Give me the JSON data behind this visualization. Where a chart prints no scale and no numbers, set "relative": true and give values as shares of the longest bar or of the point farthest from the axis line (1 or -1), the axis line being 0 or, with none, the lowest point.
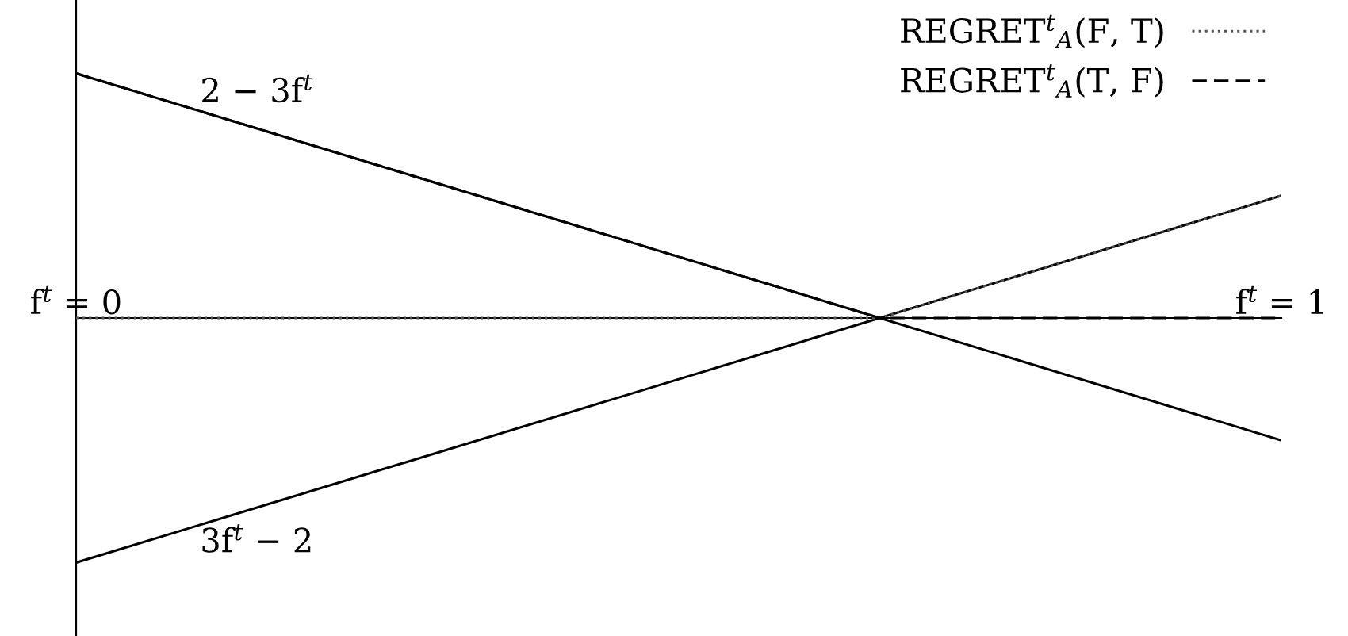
{
  "chart_data": {
    "type": "line",
    "relative": true,
    "x": [
      0,
      0.6667,
      1
    ],
    "xlim": [
      0,
      1
    ],
    "xticks": [
      {
        "value": 0,
        "label": "f$^{t}$ = 0"
      },
      {
        "value": 1,
        "label": "f$^{t}$ = 1"
      }
    ],
    "series": [
      {
        "name": "2 − 3f$^{t}$",
        "color": "#000000",
        "values": [
          1,
          0,
          -0.5
        ],
        "line_style": "solid"
      },
      {
        "name": "3f$^{t}$ − 2",
        "color": "#000000",
        "values": [
          -1,
          0,
          0.5
        ],
        "line_style": "solid"
      },
      {
        "name": "REGRET$^{t}$$_{A}$(F, T)",
        "color": "#555555",
        "values": [
          0,
          0,
          0.5
        ],
        "line_style": "dotted"
      },
      {
        "name": "REGRET$^{t}$$_{A}$(T, F)",
        "color": "#000000",
        "values": [
          1,
          0,
          0
        ],
        "line_style": "dashed"
      }
    ],
    "legend": "top right",
    "grid": false
  }
}
